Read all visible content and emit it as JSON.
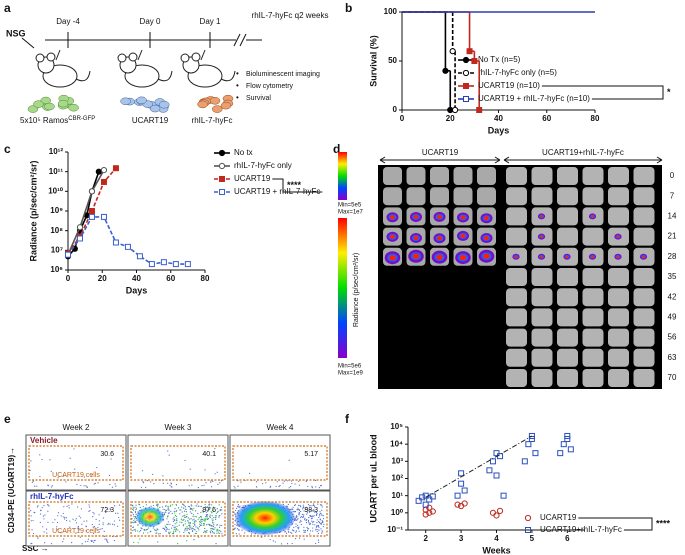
{
  "panel_labels": [
    "a",
    "b",
    "c",
    "d",
    "e",
    "f"
  ],
  "schematic": {
    "strain": "NSG",
    "timepoints": [
      "Day -4",
      "Day 0",
      "Day 1"
    ],
    "dosing": "rhIL-7-hyFc q2 weeks",
    "readouts": [
      "Bioluminescent imaging",
      "Flow cytometry",
      "Survival"
    ],
    "injections": [
      {
        "label": "5x10⁵ Ramos",
        "superscript": "CBR-GFP"
      },
      {
        "label": "UCART19"
      },
      {
        "label": "rhIL-7-hyFc"
      }
    ]
  },
  "chart_data": [
    {
      "type": "step",
      "xlabel": "Days",
      "ylabel": "Survival (%)",
      "xlim": [
        0,
        80
      ],
      "xticks": [
        0,
        20,
        40,
        60,
        80
      ],
      "ylim": [
        0,
        100
      ],
      "yticks": [
        0,
        50,
        100
      ],
      "annotation": "*",
      "series": [
        {
          "name": "No Tx (n=5)",
          "color": "#000000",
          "marker": "circle",
          "filled": true,
          "dashed": false,
          "x": [
            0,
            18,
            20
          ],
          "values": [
            100,
            40,
            0
          ]
        },
        {
          "name": "rhIL-7-hyFc only (n=5)",
          "color": "#000000",
          "marker": "circle",
          "filled": false,
          "dashed": true,
          "x": [
            0,
            21,
            22
          ],
          "values": [
            100,
            60,
            0
          ]
        },
        {
          "name": "UCART19 (n=10)",
          "color": "#c0281e",
          "marker": "square",
          "filled": true,
          "dashed": false,
          "x": [
            0,
            28,
            30,
            32
          ],
          "values": [
            100,
            60,
            50,
            0
          ]
        },
        {
          "name": "UCART19 + rhIL-7-hyFc (n=10)",
          "color": "#2a3fb0",
          "marker": "square",
          "filled": false,
          "dashed": false,
          "x": [
            0,
            80
          ],
          "values": [
            100,
            100
          ]
        }
      ]
    },
    {
      "type": "line",
      "xlabel": "Days",
      "ylabel": "Radiance (p/sec/cm²/sr)",
      "xlim": [
        0,
        80
      ],
      "xticks": [
        0,
        20,
        40,
        60,
        80
      ],
      "ylog": true,
      "ylim": [
        1000000,
        1000000000000
      ],
      "yticks": [
        {
          "value": 1000000,
          "label": "10⁶"
        },
        {
          "value": 10000000,
          "label": "10⁷"
        },
        {
          "value": 100000000,
          "label": "10⁸"
        },
        {
          "value": 1000000000,
          "label": "10⁹"
        },
        {
          "value": 10000000000,
          "label": "10¹⁰"
        },
        {
          "value": 100000000000,
          "label": "10¹¹"
        },
        {
          "value": 1000000000000,
          "label": "10¹²"
        }
      ],
      "annotation": "****",
      "series": [
        {
          "name": "No tx",
          "color": "#000000",
          "marker": "circle",
          "filled": true,
          "dashed": false,
          "x": [
            0,
            4,
            7,
            11,
            14,
            18
          ],
          "values": [
            5000000,
            12000000,
            100000000,
            600000000,
            10000000000,
            100000000000
          ]
        },
        {
          "name": "rhIL-7-hyFc only",
          "color": "#555555",
          "marker": "circle",
          "filled": false,
          "dashed": false,
          "x": [
            0,
            7,
            14,
            21
          ],
          "values": [
            6000000,
            150000000,
            10000000000,
            120000000000
          ]
        },
        {
          "name": "UCART19",
          "color": "#c0281e",
          "marker": "square",
          "filled": true,
          "dashed": true,
          "x": [
            0,
            7,
            14,
            21,
            28
          ],
          "values": [
            7000000,
            50000000,
            1000000000,
            30000000000,
            150000000000
          ]
        },
        {
          "name": "UCART19 + rhIL-7-hyFc",
          "color": "#3a5fd0",
          "marker": "square",
          "filled": false,
          "dashed": true,
          "x": [
            0,
            7,
            14,
            21,
            28,
            35,
            42,
            49,
            56,
            63,
            70
          ],
          "values": [
            6000000,
            40000000,
            500000000,
            500000000,
            25000000,
            15000000,
            5000000,
            2000000,
            2500000,
            2000000,
            2000000
          ]
        }
      ]
    },
    {
      "type": "scatter",
      "xlabel": "Weeks",
      "ylabel": "UCART per uL blood",
      "xlim": [
        1.5,
        6.5
      ],
      "xticks": [
        2,
        3,
        4,
        5,
        6
      ],
      "ylog": true,
      "ylim": [
        0.1,
        100000
      ],
      "yticks": [
        {
          "value": 0.1,
          "label": "10⁻¹"
        },
        {
          "value": 1,
          "label": "10⁰"
        },
        {
          "value": 10,
          "label": "10¹"
        },
        {
          "value": 100,
          "label": "10²"
        },
        {
          "value": 1000,
          "label": "10³"
        },
        {
          "value": 10000,
          "label": "10⁴"
        },
        {
          "value": 100000,
          "label": "10⁵"
        }
      ],
      "annotation": "****",
      "series": [
        {
          "name": "UCART19",
          "color": "#c0281e",
          "marker": "circle",
          "filled": false,
          "x": [
            2.0,
            2.1,
            2.1,
            2.2,
            2.0,
            2.9,
            3.0,
            3.1,
            3.9,
            4.0,
            4.1
          ],
          "values": [
            1.5,
            1,
            2,
            1.2,
            0.8,
            3,
            2.5,
            3.5,
            1,
            0.7,
            1.3
          ]
        },
        {
          "name": "UCART19+rhIL-7-hyFc",
          "color": "#2a4fc0",
          "marker": "square",
          "filled": false,
          "x": [
            1.8,
            1.9,
            2.0,
            2.0,
            2.1,
            2.2,
            2.9,
            3.0,
            3.0,
            3.1,
            3.8,
            3.9,
            4.0,
            4.0,
            4.1,
            4.2,
            4.8,
            4.9,
            5.0,
            5.0,
            5.1,
            5.8,
            5.9,
            6.0,
            6.0,
            6.1
          ],
          "values": [
            5,
            8,
            3,
            10,
            6,
            9,
            10,
            50,
            200,
            20,
            300,
            1000,
            3000,
            150,
            2000,
            10,
            1000,
            10000,
            30000,
            20000,
            3000,
            3000,
            10000,
            30000,
            20000,
            5000
          ]
        }
      ]
    }
  ],
  "imaging": {
    "groups": [
      "UCART19",
      "UCART19+rhIL-7-hyFc"
    ],
    "scales": [
      {
        "min": "Min=5e5",
        "max": "Max=1e7"
      },
      {
        "min": "Min=5e6",
        "max": "Max=1e9"
      }
    ],
    "colorbar_label": "Radiance (p/sec/cm²/sr)",
    "days": [
      0,
      7,
      14,
      21,
      28,
      35,
      42,
      49,
      56,
      63,
      70
    ]
  },
  "flow": {
    "weeks": [
      "Week 2",
      "Week 3",
      "Week 4"
    ],
    "rows": [
      {
        "label": "Vehicle",
        "percentages": [
          30.6,
          40.1,
          5.17
        ]
      },
      {
        "label": "rhIL-7-hyFc",
        "percentages": [
          72.3,
          97.6,
          98.3
        ]
      }
    ],
    "gate_label": "UCART19 cells",
    "ylabel": "CD34-PE (UCART19)→",
    "xlabel": "SSC →"
  }
}
